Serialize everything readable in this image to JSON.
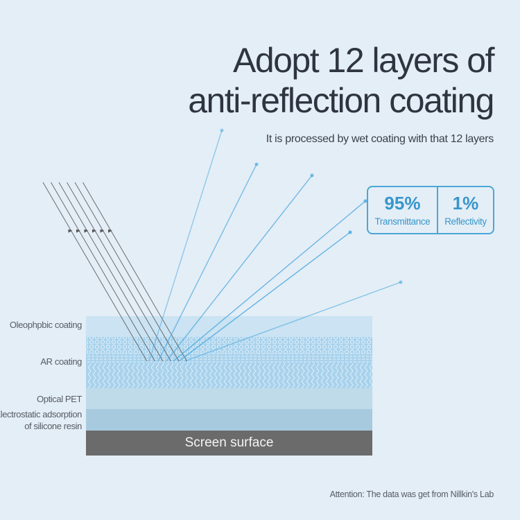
{
  "header": {
    "title_line1": "Adopt 12 layers of",
    "title_line2": "anti-reflection coating",
    "subtitle": "It is processed by wet coating with that 12 layers"
  },
  "stats": [
    {
      "value": "95%",
      "label": "Transmittance"
    },
    {
      "value": "1%",
      "label": "Reflectivity"
    }
  ],
  "layers": [
    {
      "label": "Oleophpbic coating",
      "color": "#cbe3f2"
    },
    {
      "label": "AR coating",
      "color": "#a9d2ec"
    },
    {
      "label": "Optical PET",
      "color": "#bfdbea"
    },
    {
      "label_line1": "Electrostatic adsorption",
      "label_line2": "of silicone resin",
      "color": "#a8cadf"
    },
    {
      "label": "Screen surface",
      "color": "#6b6b6b"
    }
  ],
  "colors": {
    "accent": "#3796cc",
    "background": "#e4eef6",
    "incident_ray": "#555555",
    "reflected_ray": "#4aa8e0"
  },
  "footer": {
    "note": "Attention: The data was get from Nillkin's Lab"
  }
}
